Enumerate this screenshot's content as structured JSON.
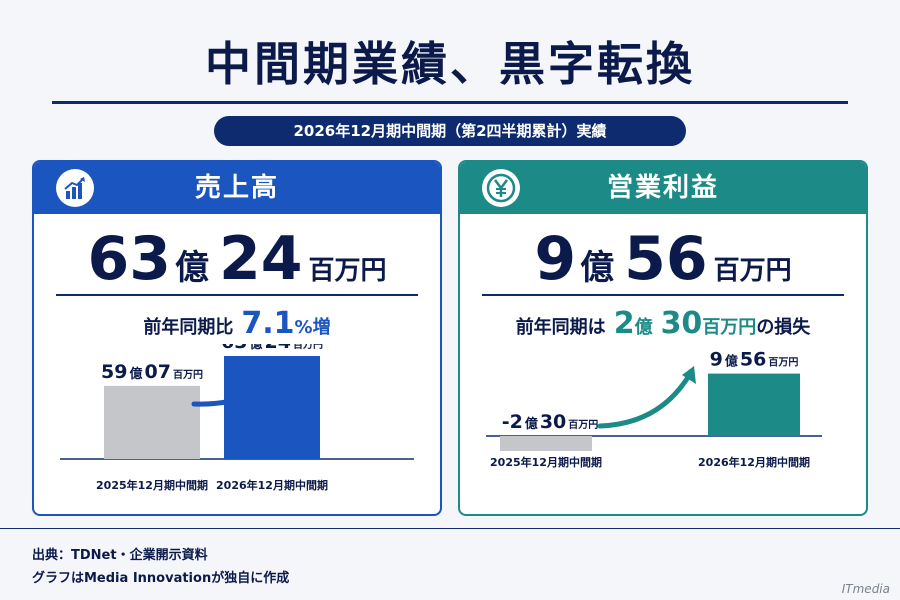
{
  "title": "中間期業績、黒字転換",
  "subtitle": "2026年12月期中間期（第2四半期累計）実績",
  "colors": {
    "sales": "#1a55c0",
    "profit": "#1c8a86",
    "prior": "#c4c6ca",
    "navy": "#0d2b6e"
  },
  "panels": {
    "sales": {
      "header": "売上高",
      "icon": "bar-chart-growth-icon",
      "value_oku": "63",
      "oku_label": "億",
      "value_rest": "24",
      "unit": "百万円",
      "change_label": "前年同期比",
      "change_value": "7.1",
      "change_suffix": "%増"
    },
    "profit": {
      "header": "営業利益",
      "icon": "yen-coin-icon",
      "value_oku": "9",
      "oku_label": "億",
      "value_rest": "56",
      "unit": "百万円",
      "change_label": "前年同期は",
      "change_oku": "2",
      "change_oku_label": "億",
      "change_rest": "30",
      "change_unit": "百万円",
      "change_suffix": "の損失"
    }
  },
  "chart_data": [
    {
      "type": "bar",
      "categories": [
        "2025年12月期中間期",
        "2026年12月期中間期"
      ],
      "values": [
        5907,
        6324
      ],
      "unit": "百万円",
      "data_labels": [
        {
          "oku": "59",
          "oku_label": "億",
          "rest": "07",
          "unit": "百万円"
        },
        {
          "oku": "63",
          "oku_label": "億",
          "rest": "24",
          "unit": "百万円"
        }
      ]
    },
    {
      "type": "bar",
      "categories": [
        "2025年12月期中間期",
        "2026年12月期中間期"
      ],
      "values": [
        -230,
        956
      ],
      "unit": "百万円",
      "data_labels": [
        {
          "oku": "-2",
          "oku_label": "億",
          "rest": "30",
          "unit": "百万円"
        },
        {
          "oku": "9",
          "oku_label": "億",
          "rest": "56",
          "unit": "百万円"
        }
      ]
    }
  ],
  "source": {
    "line1": "出典：TDNet・企業開示資料",
    "line2": "グラフはMedia Innovationが独自に作成"
  },
  "watermark": "ITmedia"
}
